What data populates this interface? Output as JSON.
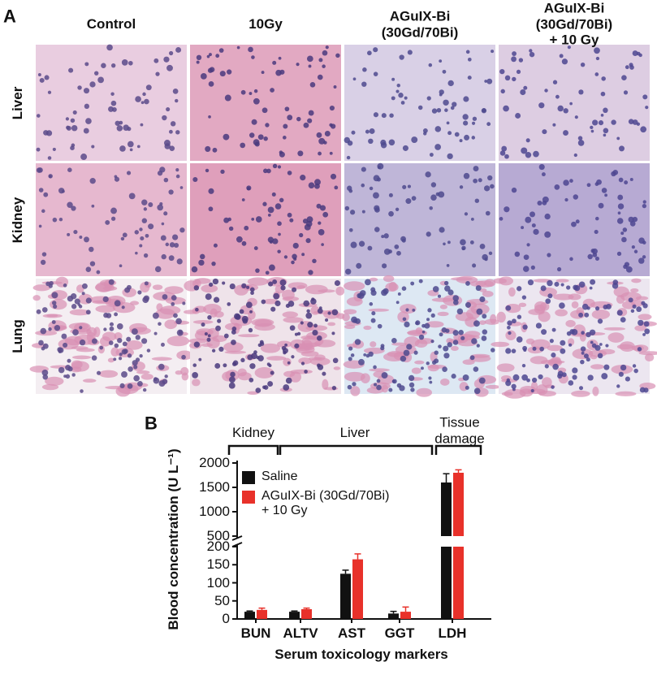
{
  "panel_a": {
    "label": "A",
    "columns": [
      "Control",
      "10Gy",
      "AGuIX-Bi\n(30Gd/70Bi)",
      "AGuIX-Bi\n(30Gd/70Bi) + 10 Gy"
    ],
    "rows": [
      "Liver",
      "Kidney",
      "Lung"
    ]
  },
  "panel_b_label": "B",
  "chart_data": {
    "type": "bar",
    "categories": [
      "BUN",
      "ALTV",
      "AST",
      "GGT",
      "LDH"
    ],
    "group_labels": [
      "Kidney",
      "Liver",
      "Tissue\ndamage"
    ],
    "series": [
      {
        "name": "Saline",
        "color": "#111111",
        "values": [
          20,
          20,
          125,
          15,
          1600
        ],
        "errors": [
          2,
          2,
          10,
          6,
          180
        ]
      },
      {
        "name": "AGuIX-Bi (30Gd/70Bi)\n+ 10 Gy",
        "color": "#e8312a",
        "values": [
          25,
          27,
          165,
          20,
          1800
        ],
        "errors": [
          5,
          3,
          15,
          13,
          60
        ]
      }
    ],
    "ylim": [
      0,
      2000
    ],
    "y_break": [
      200,
      500
    ],
    "yticks": [
      0,
      50,
      100,
      150,
      200,
      500,
      1000,
      1500,
      2000
    ],
    "ylabel": "Blood concentration (U L⁻¹)",
    "xlabel": "Serum toxicology markers",
    "legend": "upper-left"
  }
}
